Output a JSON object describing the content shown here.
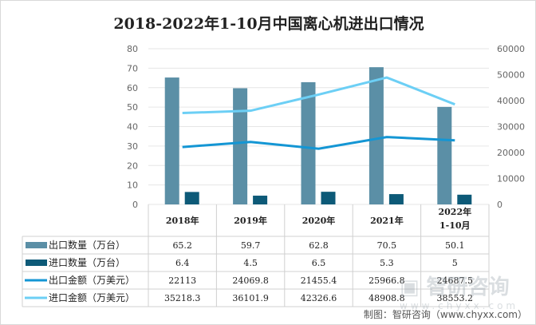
{
  "chart_data": {
    "type": "bar+line",
    "title": "2018-2022年1-10月中国离心机进出口情况",
    "categories": [
      "2018年",
      "2019年",
      "2020年",
      "2021年",
      "2022年\n1-10月"
    ],
    "series": [
      {
        "name": "出口数量（万台）",
        "type": "bar",
        "axis": "left",
        "color": "#5b8fa6",
        "values": [
          65.2,
          59.7,
          62.8,
          70.5,
          50.1
        ]
      },
      {
        "name": "进口数量（万台）",
        "type": "bar",
        "axis": "left",
        "color": "#0d5a78",
        "values": [
          6.4,
          4.5,
          6.5,
          5.3,
          5
        ]
      },
      {
        "name": "出口金额（万美元）",
        "type": "line",
        "axis": "right",
        "color": "#1496d4",
        "values": [
          22113,
          24069.8,
          21455.4,
          25966.8,
          24687.5
        ]
      },
      {
        "name": "进口金额（万美元）",
        "type": "line",
        "axis": "right",
        "color": "#6ccff5",
        "values": [
          35218.3,
          36101.9,
          42326.6,
          48908.8,
          38553.2
        ]
      }
    ],
    "ylim_left": [
      0,
      80
    ],
    "yticks_left": [
      0,
      10,
      20,
      30,
      40,
      50,
      60,
      70,
      80
    ],
    "ylim_right": [
      0,
      60000
    ],
    "yticks_right": [
      0,
      10000,
      20000,
      30000,
      40000,
      50000,
      60000
    ],
    "grid": true,
    "legend": "data-table"
  },
  "source": "制图：智研咨询（www.chyxx.com）",
  "watermark": "智研咨询",
  "watermark_url": "www.chyxx.com"
}
